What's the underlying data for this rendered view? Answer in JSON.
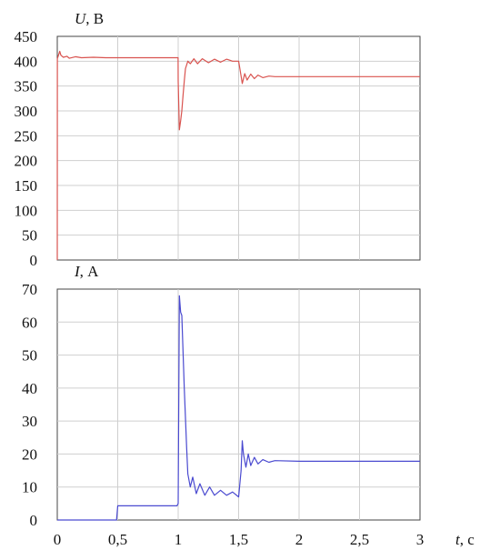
{
  "chart_data": [
    {
      "type": "line",
      "ylabel_symbol": "U",
      "ylabel_unit": ", В",
      "xlim": [
        0,
        3
      ],
      "ylim": [
        0,
        450
      ],
      "yticks": [
        "0",
        "50",
        "100",
        "150",
        "200",
        "250",
        "300",
        "350",
        "400",
        "450"
      ],
      "grid": true,
      "line_color": "#d9534f",
      "series": [
        {
          "x": [
            0,
            0.001,
            0.02,
            0.03,
            0.05,
            0.08,
            0.1,
            0.15,
            0.2,
            0.3,
            0.4,
            0.5,
            0.6,
            0.7,
            0.8,
            0.9,
            0.999,
            1.0,
            1.01,
            1.02,
            1.03,
            1.04,
            1.05,
            1.06,
            1.08,
            1.1,
            1.13,
            1.16,
            1.2,
            1.25,
            1.3,
            1.35,
            1.4,
            1.45,
            1.5,
            1.52,
            1.53,
            1.55,
            1.57,
            1.6,
            1.63,
            1.66,
            1.7,
            1.75,
            1.8,
            2.0,
            2.2,
            2.4,
            2.6,
            2.8,
            3.0
          ],
          "y": [
            0,
            405,
            420,
            412,
            408,
            410,
            406,
            409,
            407,
            408,
            407,
            407,
            407,
            407,
            407,
            407,
            407,
            360,
            262,
            280,
            300,
            330,
            360,
            385,
            400,
            395,
            405,
            395,
            405,
            397,
            404,
            398,
            404,
            400,
            400,
            370,
            355,
            375,
            362,
            374,
            365,
            372,
            367,
            370,
            369,
            369,
            369,
            369,
            369,
            369,
            369
          ]
        }
      ]
    },
    {
      "type": "line",
      "ylabel_symbol": "I",
      "ylabel_unit": ", А",
      "xlabel_symbol": "t",
      "xlabel_unit": ", с",
      "xlim": [
        0,
        3
      ],
      "ylim": [
        0,
        70
      ],
      "xticks": [
        "0",
        "0,5",
        "1",
        "1,5",
        "2",
        "2,5",
        "3"
      ],
      "yticks": [
        "0",
        "10",
        "20",
        "30",
        "40",
        "50",
        "60",
        "70"
      ],
      "grid": true,
      "line_color": "#4a4ad0",
      "series": [
        {
          "x": [
            0,
            0.49,
            0.5,
            0.99,
            1.0,
            1.01,
            1.02,
            1.03,
            1.05,
            1.07,
            1.08,
            1.1,
            1.12,
            1.15,
            1.18,
            1.22,
            1.26,
            1.3,
            1.35,
            1.4,
            1.45,
            1.5,
            1.52,
            1.53,
            1.54,
            1.56,
            1.58,
            1.6,
            1.63,
            1.66,
            1.7,
            1.75,
            1.8,
            2.0,
            2.2,
            2.4,
            2.6,
            2.8,
            3.0
          ],
          "y": [
            0,
            0,
            4.3,
            4.3,
            5,
            68,
            63,
            62,
            40,
            22,
            14,
            10,
            13,
            8,
            11,
            7.5,
            10,
            7.5,
            9,
            7.5,
            8.5,
            7,
            15,
            24,
            20,
            16,
            20,
            16.5,
            19,
            17,
            18.3,
            17.5,
            18,
            17.8,
            17.8,
            17.8,
            17.8,
            17.8,
            17.8
          ]
        }
      ]
    }
  ]
}
